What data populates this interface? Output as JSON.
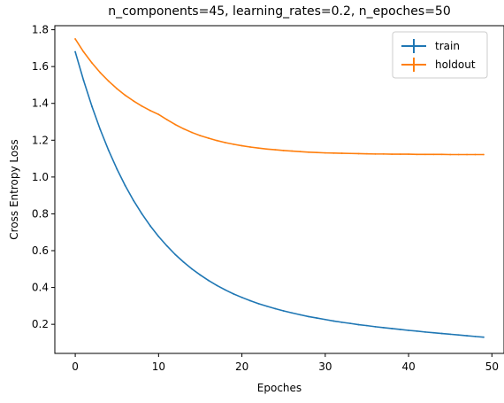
{
  "chart_data": {
    "type": "line",
    "title": "n_components=45, learning_rates=0.2, n_epoches=50",
    "xlabel": "Epoches",
    "ylabel": "Cross Entropy Loss",
    "xlim": [
      -2.45,
      51.45
    ],
    "ylim": [
      0.042,
      1.822
    ],
    "xticks": [
      0,
      10,
      20,
      30,
      40,
      50
    ],
    "yticks": [
      0.2,
      0.4,
      0.6,
      0.8,
      1.0,
      1.2,
      1.4,
      1.6,
      1.8
    ],
    "ytick_labels": [
      "0.2",
      "0.4",
      "0.6",
      "0.8",
      "1.0",
      "1.2",
      "1.4",
      "1.6",
      "1.8"
    ],
    "grid": false,
    "legend": "top-right",
    "x": [
      0,
      1,
      2,
      3,
      4,
      5,
      6,
      7,
      8,
      9,
      10,
      11,
      12,
      13,
      14,
      15,
      16,
      17,
      18,
      19,
      20,
      21,
      22,
      23,
      24,
      25,
      26,
      27,
      28,
      29,
      30,
      31,
      32,
      33,
      34,
      35,
      36,
      37,
      38,
      39,
      40,
      41,
      42,
      43,
      44,
      45,
      46,
      47,
      48,
      49
    ],
    "series": [
      {
        "name": "train",
        "color": "#1f77b4",
        "values": [
          1.68,
          1.525,
          1.384,
          1.258,
          1.145,
          1.044,
          0.953,
          0.872,
          0.8,
          0.735,
          0.677,
          0.626,
          0.579,
          0.538,
          0.501,
          0.468,
          0.438,
          0.411,
          0.387,
          0.365,
          0.346,
          0.328,
          0.312,
          0.298,
          0.285,
          0.273,
          0.262,
          0.252,
          0.242,
          0.234,
          0.226,
          0.218,
          0.211,
          0.205,
          0.198,
          0.193,
          0.187,
          0.182,
          0.177,
          0.172,
          0.167,
          0.163,
          0.158,
          0.154,
          0.15,
          0.146,
          0.142,
          0.138,
          0.134,
          0.13
        ]
      },
      {
        "name": "holdout",
        "color": "#ff7f0e",
        "values": [
          1.75,
          1.68,
          1.62,
          1.567,
          1.521,
          1.48,
          1.444,
          1.413,
          1.385,
          1.361,
          1.34,
          1.312,
          1.285,
          1.262,
          1.242,
          1.225,
          1.211,
          1.198,
          1.187,
          1.178,
          1.17,
          1.163,
          1.157,
          1.152,
          1.148,
          1.144,
          1.141,
          1.138,
          1.135,
          1.133,
          1.131,
          1.13,
          1.129,
          1.128,
          1.127,
          1.126,
          1.125,
          1.125,
          1.124,
          1.124,
          1.124,
          1.123,
          1.123,
          1.123,
          1.123,
          1.122,
          1.122,
          1.122,
          1.122,
          1.122
        ]
      }
    ]
  }
}
